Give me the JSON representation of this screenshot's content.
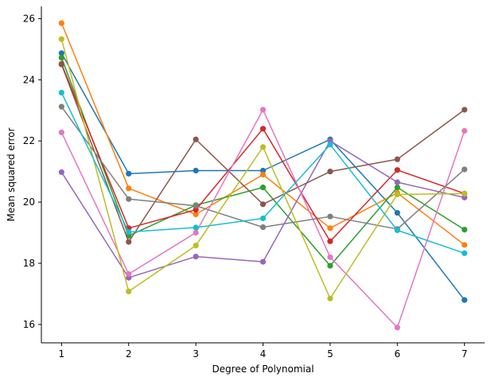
{
  "chart_data": {
    "type": "line",
    "title": "",
    "xlabel": "Degree of Polynomial",
    "ylabel": "Mean squared error",
    "x": [
      1,
      2,
      3,
      4,
      5,
      6,
      7
    ],
    "xticks": [
      "1",
      "2",
      "3",
      "4",
      "5",
      "6",
      "7"
    ],
    "yticks": [
      "16",
      "18",
      "20",
      "22",
      "24",
      "26"
    ],
    "ylim": [
      15.4,
      26.4
    ],
    "xlim": [
      0.7,
      7.3
    ],
    "grid": false,
    "legend": "none",
    "series": [
      {
        "color": "#1f77b4",
        "values": [
          24.87,
          20.93,
          21.03,
          21.03,
          22.05,
          19.65,
          16.8
        ]
      },
      {
        "color": "#ff7f0e",
        "values": [
          25.85,
          20.45,
          19.6,
          20.9,
          19.15,
          20.3,
          18.6
        ]
      },
      {
        "color": "#2ca02c",
        "values": [
          24.72,
          18.9,
          19.9,
          20.48,
          17.92,
          20.48,
          19.1
        ]
      },
      {
        "color": "#d62728",
        "values": [
          24.52,
          19.15,
          19.75,
          22.4,
          18.72,
          21.05,
          20.28
        ]
      },
      {
        "color": "#9467bd",
        "values": [
          20.98,
          17.53,
          18.22,
          18.05,
          22.0,
          20.65,
          20.15
        ]
      },
      {
        "color": "#8c564b",
        "values": [
          24.5,
          18.7,
          22.05,
          19.93,
          21.0,
          21.4,
          23.02
        ]
      },
      {
        "color": "#e377c2",
        "values": [
          22.28,
          17.65,
          19.0,
          23.02,
          18.2,
          15.9,
          22.33
        ]
      },
      {
        "color": "#7f7f7f",
        "values": [
          23.12,
          20.1,
          19.88,
          19.18,
          19.53,
          19.12,
          21.07
        ]
      },
      {
        "color": "#bcbd22",
        "values": [
          25.33,
          17.08,
          18.58,
          21.8,
          16.85,
          20.25,
          20.28
        ]
      },
      {
        "color": "#17becf",
        "values": [
          23.58,
          19.02,
          19.17,
          19.47,
          21.88,
          19.08,
          18.33
        ]
      }
    ]
  }
}
